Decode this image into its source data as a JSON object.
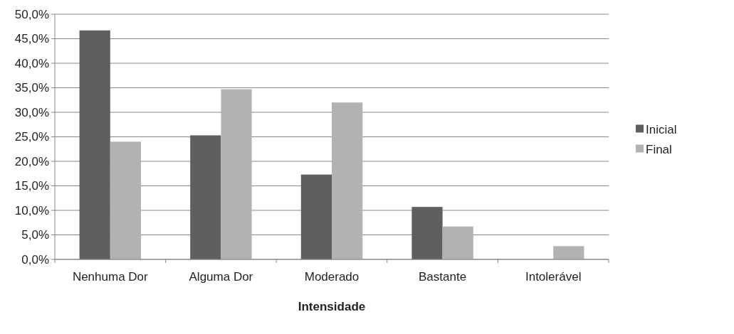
{
  "chart_data": {
    "type": "bar",
    "xlabel": "Intensidade",
    "categories": [
      "Nenhuma Dor",
      "Alguma Dor",
      "Moderado",
      "Bastante",
      "Intolerável"
    ],
    "series": [
      {
        "name": "Inicial",
        "color": "#5f5f5f",
        "values": [
          46.7,
          25.3,
          17.3,
          10.7,
          0
        ]
      },
      {
        "name": "Final",
        "color": "#b2b2b2",
        "values": [
          24.0,
          34.7,
          32.0,
          6.7,
          2.7
        ]
      }
    ],
    "ylim": [
      0,
      50
    ],
    "yticks": [
      {
        "value": 0,
        "label": "0,0%"
      },
      {
        "value": 5,
        "label": "5,0%"
      },
      {
        "value": 10,
        "label": "10,0%"
      },
      {
        "value": 15,
        "label": "15,0%"
      },
      {
        "value": 20,
        "label": "20,0%"
      },
      {
        "value": 25,
        "label": "25,0%"
      },
      {
        "value": 30,
        "label": "30,0%"
      },
      {
        "value": 35,
        "label": "35,0%"
      },
      {
        "value": 40,
        "label": "40,0%"
      },
      {
        "value": 45,
        "label": "45,0%"
      },
      {
        "value": 50,
        "label": "50,0%"
      }
    ],
    "grid": "y",
    "legend": "right"
  }
}
